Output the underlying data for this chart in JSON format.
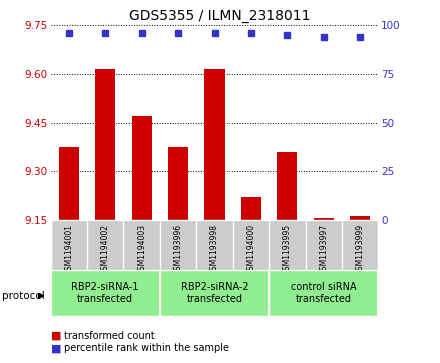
{
  "title": "GDS5355 / ILMN_2318011",
  "samples": [
    "GSM1194001",
    "GSM1194002",
    "GSM1194003",
    "GSM1193996",
    "GSM1193998",
    "GSM1194000",
    "GSM1193995",
    "GSM1193997",
    "GSM1193999"
  ],
  "bar_values": [
    9.375,
    9.615,
    9.47,
    9.375,
    9.615,
    9.22,
    9.36,
    9.155,
    9.16
  ],
  "percentile_values": [
    96,
    96,
    96,
    96,
    96,
    96,
    95,
    94,
    94
  ],
  "ylim_left": [
    9.15,
    9.75
  ],
  "ylim_right": [
    0,
    100
  ],
  "yticks_left": [
    9.15,
    9.3,
    9.45,
    9.6,
    9.75
  ],
  "yticks_right": [
    0,
    25,
    50,
    75,
    100
  ],
  "bar_color": "#CC0000",
  "dot_color": "#3333CC",
  "groups": [
    {
      "label": "RBP2-siRNA-1\ntransfected",
      "start": 0,
      "end": 3,
      "color": "#90EE90"
    },
    {
      "label": "RBP2-siRNA-2\ntransfected",
      "start": 3,
      "end": 6,
      "color": "#90EE90"
    },
    {
      "label": "control siRNA\ntransfected",
      "start": 6,
      "end": 9,
      "color": "#90EE90"
    }
  ],
  "protocol_label": "protocol",
  "legend_bar_label": "transformed count",
  "legend_dot_label": "percentile rank within the sample",
  "sample_bg_color": "#CCCCCC",
  "plot_bg": "#FFFFFF",
  "tick_label_color_left": "#CC0000",
  "tick_label_color_right": "#3333CC",
  "bar_width": 0.55,
  "base_value": 9.15,
  "title_fontsize": 10,
  "tick_fontsize": 7.5,
  "sample_fontsize": 5.5,
  "group_fontsize": 7,
  "legend_fontsize": 7
}
